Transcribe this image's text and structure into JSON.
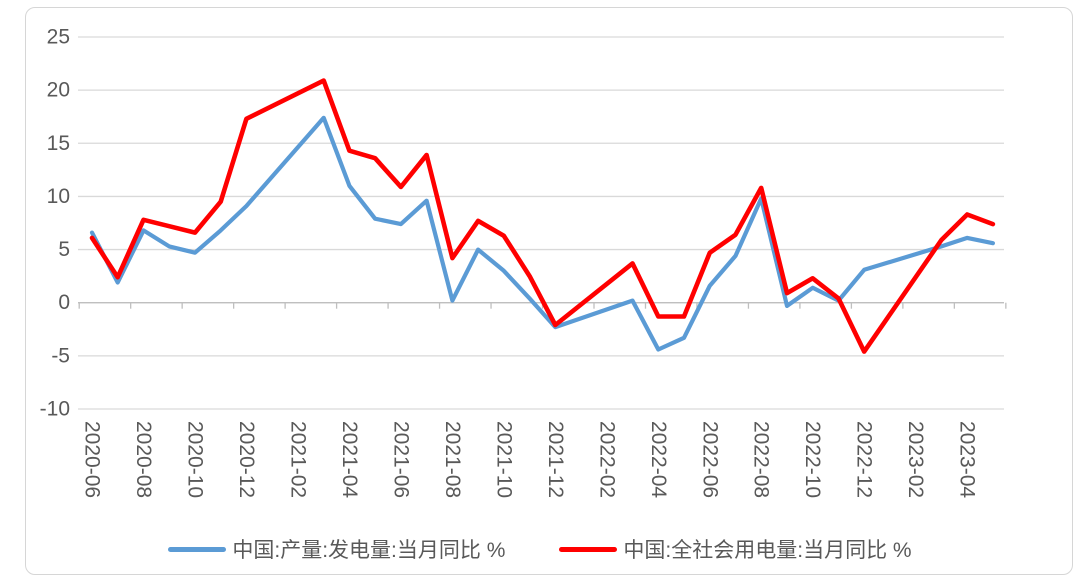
{
  "chart_data": {
    "type": "line",
    "title": "",
    "xlabel": "",
    "ylabel": "",
    "unit": "%",
    "ylim": [
      -10,
      25
    ],
    "y_ticks": [
      25,
      20,
      15,
      10,
      5,
      0,
      -5,
      -10
    ],
    "grid": true,
    "legend_position": "bottom",
    "x_tick_labels": [
      "2020-06",
      "2020-08",
      "2020-10",
      "2020-12",
      "2021-02",
      "2021-04",
      "2021-06",
      "2021-08",
      "2021-10",
      "2021-12",
      "2022-02",
      "2022-04",
      "2022-06",
      "2022-08",
      "2022-10",
      "2022-12",
      "2023-02",
      "2023-04"
    ],
    "x": [
      "2020-06",
      "2020-07",
      "2020-08",
      "2020-09",
      "2020-10",
      "2020-11",
      "2020-12",
      "2021-01",
      "2021-02",
      "2021-03",
      "2021-04",
      "2021-05",
      "2021-06",
      "2021-07",
      "2021-08",
      "2021-09",
      "2021-10",
      "2021-11",
      "2021-12",
      "2022-01",
      "2022-02",
      "2022-03",
      "2022-04",
      "2022-05",
      "2022-06",
      "2022-07",
      "2022-08",
      "2022-09",
      "2022-10",
      "2022-11",
      "2022-12",
      "2023-01",
      "2023-02",
      "2023-03",
      "2023-04",
      "2023-05"
    ],
    "series": [
      {
        "name": "中国:产量:发电量:当月同比 %",
        "color": "#5B9BD5",
        "line_width": 4.2,
        "values": [
          6.6,
          1.9,
          6.8,
          5.3,
          4.7,
          6.8,
          9.1,
          null,
          null,
          17.4,
          11.0,
          7.9,
          7.4,
          9.6,
          0.2,
          5.0,
          3.0,
          0.4,
          -2.3,
          null,
          null,
          0.2,
          -4.4,
          -3.3,
          1.6,
          4.4,
          9.8,
          -0.3,
          1.4,
          0.2,
          3.1,
          null,
          null,
          5.3,
          6.1,
          5.6
        ]
      },
      {
        "name": "中国:全社会用电量:当月同比 %",
        "color": "#FF0000",
        "line_width": 4.6,
        "values": [
          6.1,
          2.4,
          7.8,
          7.2,
          6.6,
          9.5,
          17.3,
          null,
          null,
          20.9,
          14.3,
          13.6,
          10.9,
          13.9,
          4.2,
          7.7,
          6.3,
          2.5,
          -2.1,
          null,
          null,
          3.7,
          -1.3,
          -1.3,
          4.7,
          6.4,
          10.8,
          0.9,
          2.3,
          0.4,
          -4.6,
          null,
          null,
          5.9,
          8.3,
          7.4
        ]
      }
    ],
    "axis_colors": {
      "tick_label": "#595959",
      "gridline": "#D9D9D9",
      "axis_line": "#BFBFBF"
    }
  }
}
